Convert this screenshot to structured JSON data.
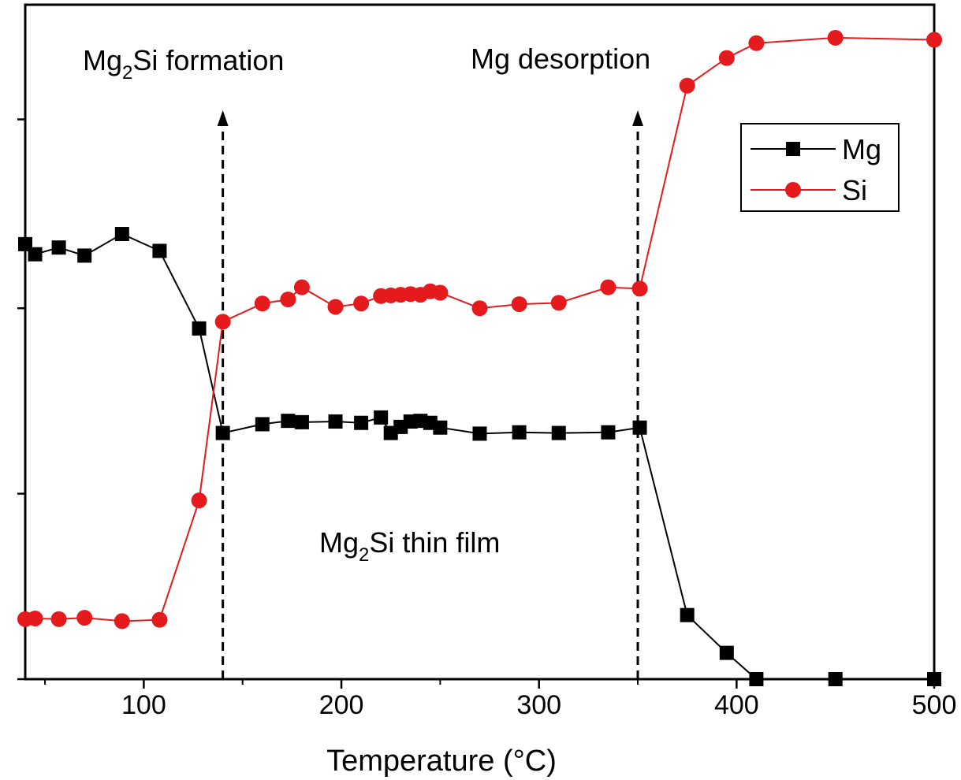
{
  "chart_data": {
    "type": "line",
    "title": "",
    "xlabel": "Temperature (°C)",
    "ylabel": "",
    "xlim": [
      40,
      500
    ],
    "ylim": [
      0,
      100
    ],
    "x_ticks": [
      100,
      200,
      300,
      400,
      500
    ],
    "x_minor_ticks": [
      50,
      150,
      250,
      350,
      450
    ],
    "y_tick_values": [
      0,
      27.5,
      55,
      83
    ],
    "grid": false,
    "legend_position": "top-right",
    "series": [
      {
        "name": "Mg",
        "marker": "square",
        "color": "#000000",
        "x": [
          40,
          45,
          57,
          70,
          89,
          108,
          128,
          140,
          160,
          173,
          180,
          197,
          210,
          220,
          225,
          230,
          235,
          240,
          245,
          250,
          270,
          290,
          310,
          335,
          351,
          375,
          395,
          410,
          450,
          500
        ],
        "y": [
          64.5,
          63.0,
          64.0,
          62.8,
          66.0,
          63.5,
          52.0,
          36.5,
          37.8,
          38.3,
          38.1,
          38.2,
          38.0,
          38.8,
          36.5,
          37.4,
          38.2,
          38.3,
          38.0,
          37.3,
          36.4,
          36.6,
          36.5,
          36.6,
          37.3,
          9.5,
          3.9,
          0,
          0,
          0
        ]
      },
      {
        "name": "Si",
        "marker": "circle",
        "color": "#e41a1c",
        "x": [
          40,
          45,
          57,
          70,
          89,
          108,
          128,
          140,
          160,
          173,
          180,
          197,
          210,
          220,
          225,
          230,
          235,
          240,
          245,
          250,
          335,
          351,
          270,
          290,
          310,
          375,
          395,
          410,
          450,
          500
        ],
        "y": [
          8.9,
          9.0,
          8.9,
          9.1,
          8.6,
          8.8,
          26.5,
          53.0,
          55.7,
          56.3,
          58.1,
          55.2,
          55.7,
          56.8,
          56.9,
          57.0,
          57.1,
          57.0,
          57.5,
          57.3,
          58.1,
          57.9,
          55.0,
          55.6,
          55.8,
          88.0,
          92.1,
          94.3,
          95.1,
          94.8
        ]
      }
    ],
    "annotations": [
      {
        "text_main": "Mg",
        "text_sub": "2",
        "text_rest": "Si formation",
        "arrow_x": 140
      },
      {
        "text_main": "Mg desorption",
        "arrow_x": 350
      },
      {
        "text_main": "Mg",
        "text_sub": "2",
        "text_rest": "Si thin film"
      }
    ]
  }
}
